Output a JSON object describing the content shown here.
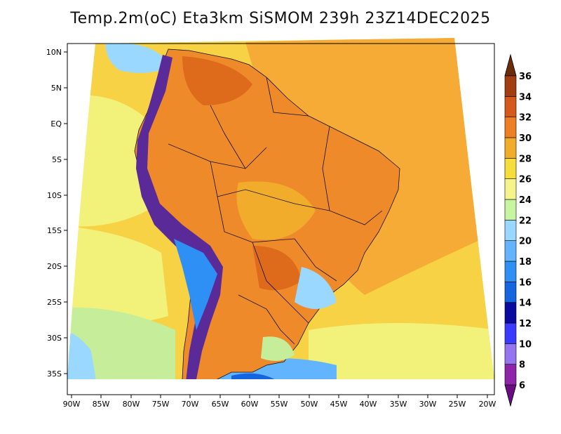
{
  "title": "Temp.2m(oC) Eta3km SiSMOM 239h 23Z14DEC2025",
  "lat_labels": [
    "10N",
    "5N",
    "EQ",
    "5S",
    "10S",
    "15S",
    "20S",
    "25S",
    "30S",
    "35S"
  ],
  "lon_labels": [
    "90W",
    "85W",
    "80W",
    "75W",
    "70W",
    "65W",
    "60W",
    "55W",
    "50W",
    "45W",
    "40W",
    "35W",
    "30W",
    "25W",
    "20W"
  ],
  "colorbar": {
    "levels": [
      "6",
      "8",
      "10",
      "12",
      "14",
      "16",
      "18",
      "20",
      "22",
      "24",
      "26",
      "28",
      "30",
      "32",
      "34",
      "36"
    ],
    "colors": [
      "#6a0d83",
      "#8e24aa",
      "#9575f0",
      "#3b3bff",
      "#0a0aa0",
      "#1565e0",
      "#2e8ff5",
      "#62b4ff",
      "#9bd8ff",
      "#c8f5a0",
      "#f5f58c",
      "#f6dc3c",
      "#f2ac2c",
      "#ee7e22",
      "#d4591a",
      "#a23d12",
      "#6b2c0a"
    ]
  },
  "colors": {
    "ocean_warm": "#f5ab35",
    "ocean_mild": "#f6d244",
    "ocean_cool": "#f2f27a",
    "ocean_cold": "#c6ee9a",
    "land_base": "#ee8a2a",
    "land_hot": "#de6a1c",
    "andes": "#5b2a99",
    "borders": "#111111"
  }
}
